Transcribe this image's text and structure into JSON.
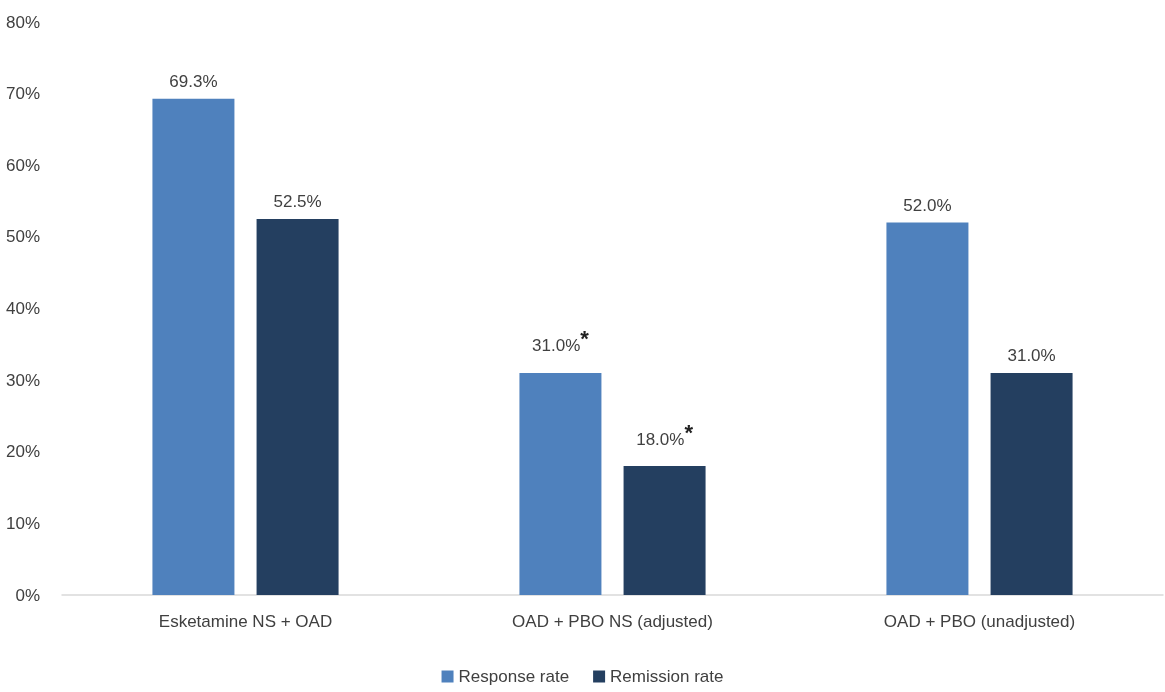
{
  "chart_data": {
    "type": "bar",
    "categories": [
      "Esketamine NS + OAD",
      "OAD + PBO NS (adjusted)",
      "OAD + PBO (unadjusted)"
    ],
    "series": [
      {
        "name": "Response rate",
        "color": "#4f81bd",
        "values": [
          69.3,
          31.0,
          52.0
        ],
        "value_labels": [
          "69.3%",
          "31.0%*",
          "52.0%"
        ]
      },
      {
        "name": "Remission rate",
        "color": "#243f60",
        "values": [
          52.5,
          18.0,
          31.0
        ],
        "value_labels": [
          "52.5%",
          "18.0%*",
          "31.0%"
        ]
      }
    ],
    "ylim": [
      0,
      80
    ],
    "yticks": [
      {
        "value": 0,
        "label": "0%"
      },
      {
        "value": 10,
        "label": "10%"
      },
      {
        "value": 20,
        "label": "20%"
      },
      {
        "value": 30,
        "label": "30%"
      },
      {
        "value": 40,
        "label": "40%"
      },
      {
        "value": 50,
        "label": "50%"
      },
      {
        "value": 60,
        "label": "60%"
      },
      {
        "value": 70,
        "label": "70%"
      },
      {
        "value": 80,
        "label": "80%"
      }
    ],
    "grid": false,
    "legend": "bottom"
  }
}
